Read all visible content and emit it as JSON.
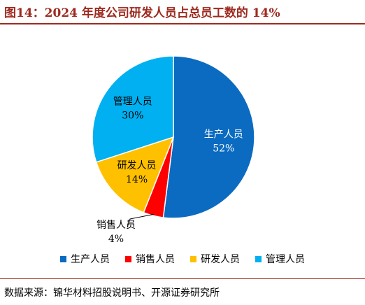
{
  "title": "图14：2024 年度公司研发人员占总员工数的 14%",
  "source": "数据来源：锦华材料招股说明书、开源证券研究所",
  "chart_data": {
    "type": "pie",
    "title": "图14：2024 年度公司研发人员占总员工数的 14%",
    "slices": [
      {
        "name": "生产人员",
        "value": 52,
        "label": "52%",
        "color": "#0a6bc1",
        "label_color": "#ffffff"
      },
      {
        "name": "销售人员",
        "value": 4,
        "label": "4%",
        "color": "#ff0000",
        "label_color": "#000000"
      },
      {
        "name": "研发人员",
        "value": 14,
        "label": "14%",
        "color": "#ffc000",
        "label_color": "#000000"
      },
      {
        "name": "管理人员",
        "value": 30,
        "label": "30%",
        "color": "#00b0f0",
        "label_color": "#000000"
      }
    ],
    "start": "12 o'clock",
    "direction": "clockwise",
    "legend": "bottom"
  }
}
